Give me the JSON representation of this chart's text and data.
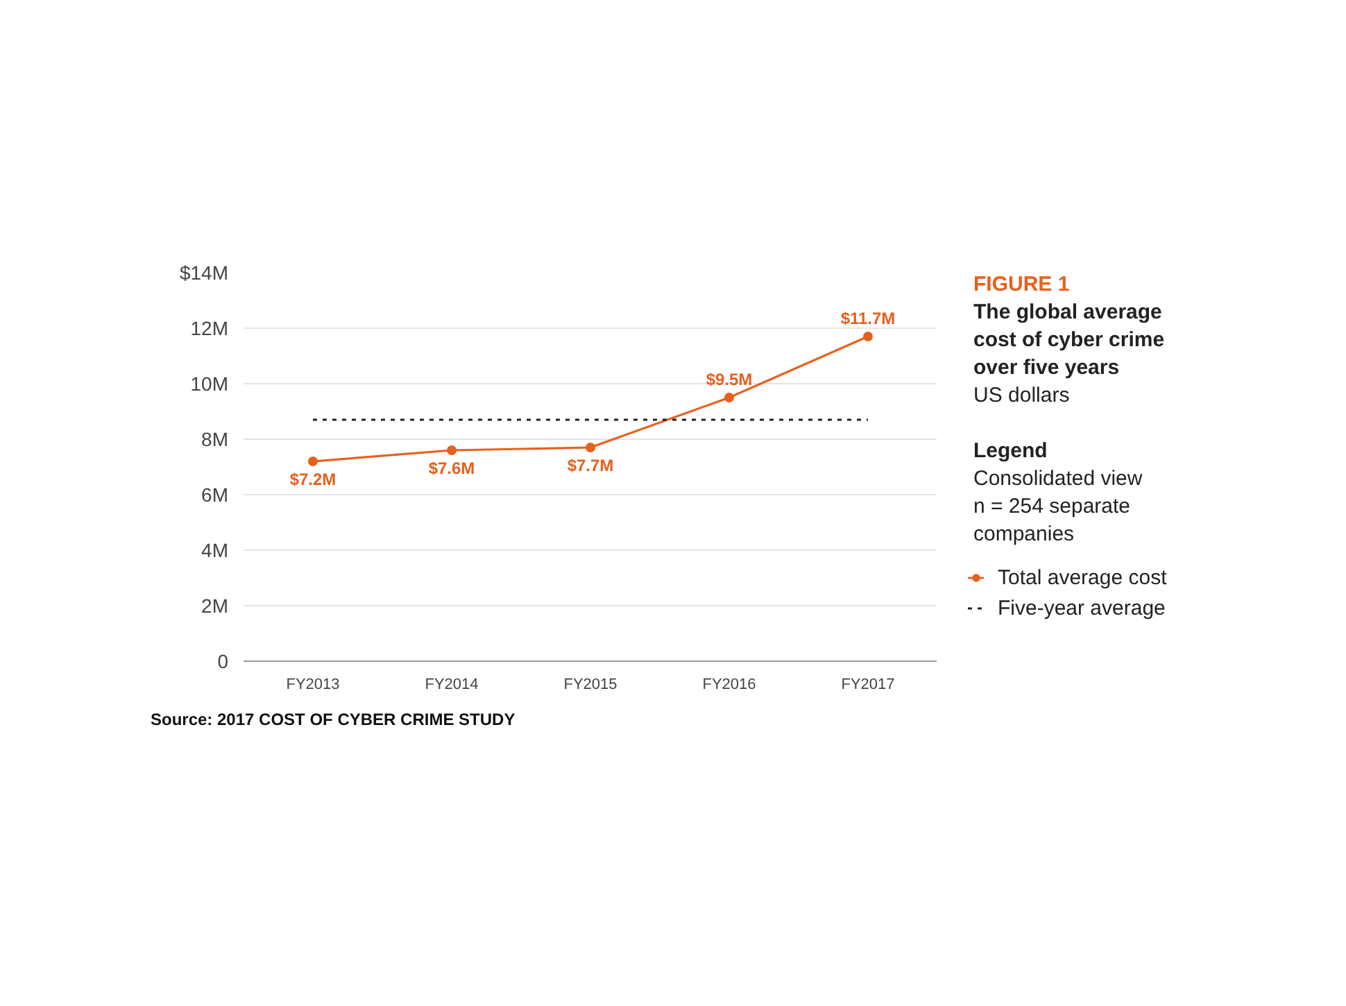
{
  "chart_data": {
    "type": "line",
    "title": "FIGURE 1",
    "subtitle": "The global average cost of cyber crime over five years",
    "categories": [
      "FY2013",
      "FY2014",
      "FY2015",
      "FY2016",
      "FY2017"
    ],
    "series": [
      {
        "name": "Total average cost",
        "color": "#e8601c",
        "values": [
          7.2,
          7.6,
          7.7,
          9.5,
          11.7
        ],
        "marker": "circle",
        "line_style": "solid",
        "value_labels": [
          "$7.2M",
          "$7.6M",
          "$7.7M",
          "$9.5M",
          "$11.7M"
        ]
      },
      {
        "name": "Five-year average",
        "color": "#222222",
        "values": [
          8.7,
          8.7,
          8.7,
          8.7,
          8.7
        ],
        "marker": "none",
        "line_style": "dotted"
      }
    ],
    "ylim": [
      0,
      14
    ],
    "yticks": [
      0,
      {
        "value": 2,
        "label": "2M"
      },
      {
        "value": 4,
        "label": "4M"
      },
      {
        "value": 6,
        "label": "6M"
      },
      {
        "value": 8,
        "label": "8M"
      },
      {
        "value": 10,
        "label": "10M"
      },
      {
        "value": 12,
        "label": "12M"
      },
      {
        "value": 14,
        "label": "$14M"
      }
    ],
    "grid": "y",
    "legend": "right",
    "legend_title": "Legend",
    "annotations": [
      "US dollars",
      "Consolidated view",
      "n = 254 separate companies",
      "Source: 2017 COST OF CYBER CRIME STUDY"
    ]
  }
}
